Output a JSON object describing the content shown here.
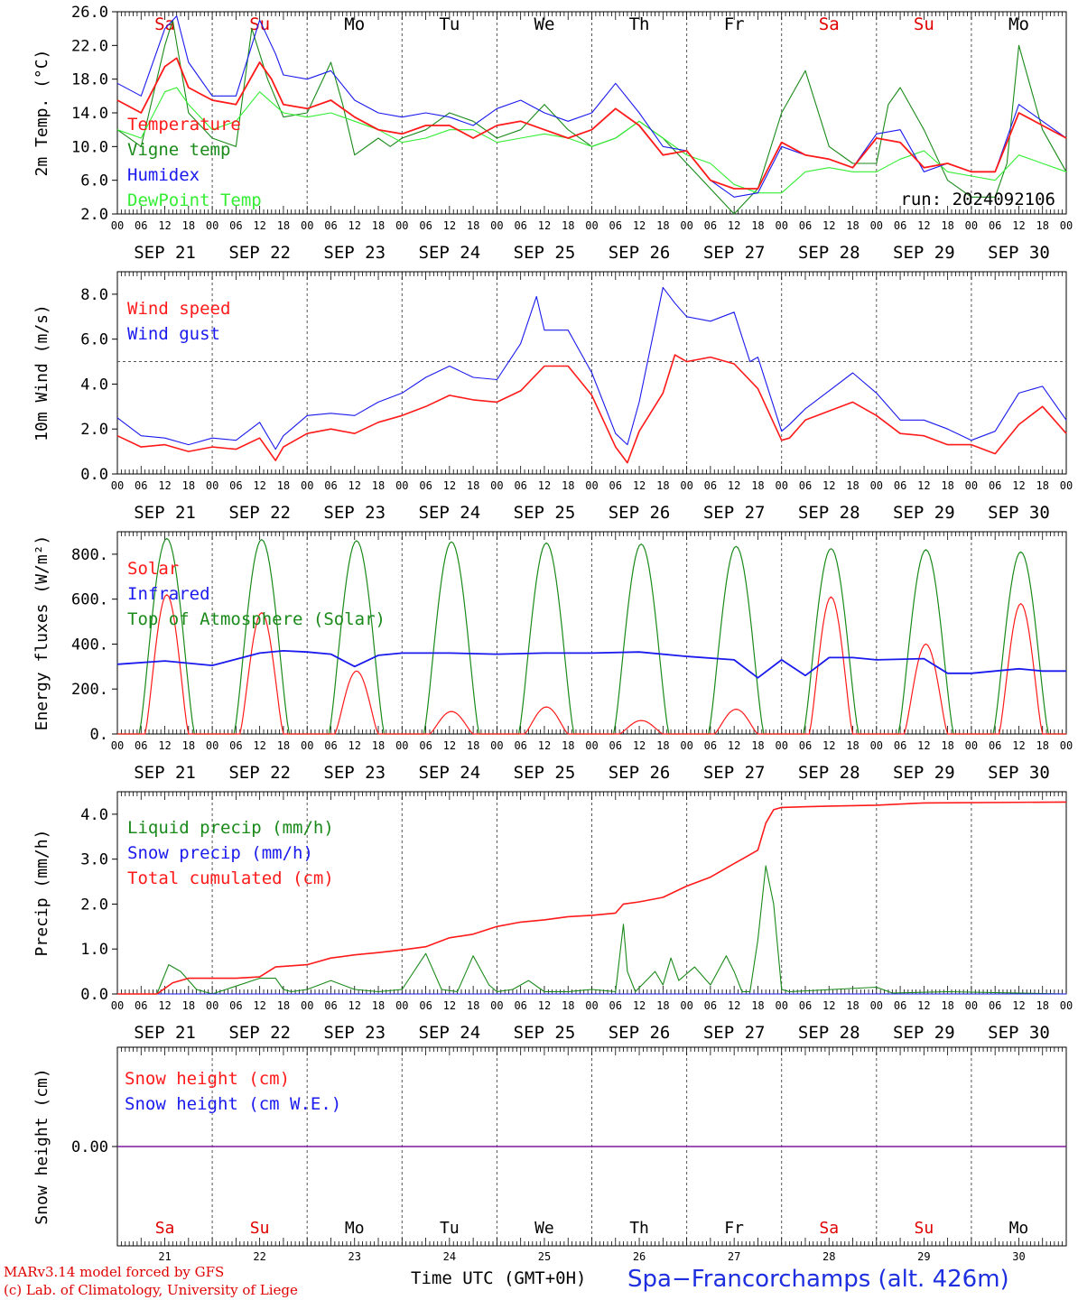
{
  "days": [
    {
      "weekday": "Sa",
      "date": "SEP 21",
      "num": "21",
      "weekend": true
    },
    {
      "weekday": "Su",
      "date": "SEP 22",
      "num": "22",
      "weekend": true
    },
    {
      "weekday": "Mo",
      "date": "SEP 23",
      "num": "23",
      "weekend": false
    },
    {
      "weekday": "Tu",
      "date": "SEP 24",
      "num": "24",
      "weekend": false
    },
    {
      "weekday": "We",
      "date": "SEP 25",
      "num": "25",
      "weekend": false
    },
    {
      "weekday": "Th",
      "date": "SEP 26",
      "num": "26",
      "weekend": false
    },
    {
      "weekday": "Fr",
      "date": "SEP 27",
      "num": "27",
      "weekend": false
    },
    {
      "weekday": "Sa",
      "date": "SEP 28",
      "num": "28",
      "weekend": true
    },
    {
      "weekday": "Su",
      "date": "SEP 29",
      "num": "29",
      "weekend": true
    },
    {
      "weekday": "Mo",
      "date": "SEP 30",
      "num": "30",
      "weekend": false
    }
  ],
  "hour_labels": [
    "00",
    "06",
    "12",
    "18"
  ],
  "colors": {
    "weekend": "#e00000",
    "weekday": "#000000",
    "red": "#ff1a1a",
    "green": "#1a8a1a",
    "blue": "#1a1aee",
    "light_green": "#33ee33",
    "purple": "#7a1a9a"
  },
  "footer": {
    "line1": "MARv3.14 model forced by GFS",
    "line2": "(c) Lab. of Climatology, University of Liege",
    "axis_label": "Time UTC (GMT+0H)",
    "station": "Spa−Francorchamps (alt. 426m)"
  },
  "chart_data": [
    {
      "type": "line",
      "ylabel": "2m Temp. (°C)",
      "ylim": [
        2.0,
        26.0
      ],
      "yticks": [
        "2.0",
        "6.0",
        "10.0",
        "14.0",
        "18.0",
        "22.0",
        "26.0"
      ],
      "annotation": "run: 2024092106",
      "legend": "top-left",
      "x_unit": "hours since SEP 21 00 UTC",
      "series": [
        {
          "name": "Temperature",
          "color": "red",
          "x": [
            0,
            6,
            12,
            15,
            18,
            24,
            30,
            36,
            39,
            42,
            48,
            54,
            60,
            66,
            72,
            78,
            84,
            90,
            96,
            102,
            108,
            114,
            120,
            126,
            132,
            138,
            144,
            150,
            156,
            162,
            168,
            174,
            180,
            186,
            192,
            198,
            204,
            210,
            216,
            222,
            228,
            234,
            240
          ],
          "y": [
            15.5,
            14,
            19.5,
            20.5,
            17,
            15.5,
            15,
            20,
            18,
            15,
            14.5,
            15.5,
            13.5,
            12,
            11.5,
            12.5,
            12.5,
            11,
            12.5,
            13,
            12,
            11,
            12,
            14.5,
            12.5,
            9,
            9.5,
            6,
            5,
            5,
            10.5,
            9,
            8.5,
            7.5,
            11,
            10.5,
            7.5,
            8,
            7,
            7,
            14,
            12.5,
            11
          ]
        },
        {
          "name": "Vigne temp",
          "color": "green",
          "x": [
            0,
            6,
            12,
            14,
            18,
            24,
            30,
            34,
            38,
            42,
            48,
            54,
            57,
            60,
            66,
            69,
            72,
            78,
            84,
            90,
            96,
            102,
            108,
            114,
            120,
            126,
            132,
            138,
            144,
            150,
            156,
            162,
            168,
            174,
            180,
            186,
            192,
            195,
            198,
            204,
            210,
            216,
            222,
            225,
            228,
            234,
            240
          ],
          "y": [
            12,
            10,
            22,
            25,
            14,
            11,
            10,
            24,
            18,
            13.5,
            14,
            20,
            15,
            9,
            11,
            10,
            11,
            12,
            14,
            13,
            11,
            12,
            15,
            12,
            10,
            11,
            13,
            11,
            8,
            5,
            2,
            5,
            14,
            19,
            10,
            8,
            8,
            15,
            17,
            12,
            6,
            4,
            4,
            8,
            22,
            12,
            7
          ]
        },
        {
          "name": "Humidex",
          "color": "blue",
          "x": [
            0,
            6,
            12,
            15,
            18,
            24,
            30,
            36,
            40,
            42,
            48,
            54,
            60,
            66,
            72,
            78,
            84,
            90,
            96,
            102,
            108,
            114,
            120,
            126,
            132,
            138,
            144,
            150,
            156,
            162,
            168,
            174,
            180,
            186,
            192,
            198,
            204,
            210,
            216,
            222,
            228,
            234,
            240
          ],
          "y": [
            17.5,
            16,
            24,
            25.5,
            20,
            16,
            16,
            25,
            21,
            18.5,
            18,
            19,
            15.5,
            14,
            13.5,
            14,
            13.5,
            12.5,
            14.5,
            15.5,
            14,
            13,
            14,
            17.5,
            14,
            10,
            9.5,
            6,
            4,
            4.5,
            10,
            9,
            8.5,
            7.5,
            11.5,
            12,
            7,
            8,
            7,
            7,
            15,
            13,
            11
          ]
        },
        {
          "name": "DewPoint Temp",
          "color": "light_green",
          "x": [
            0,
            6,
            12,
            15,
            18,
            24,
            30,
            36,
            42,
            48,
            54,
            60,
            66,
            72,
            78,
            84,
            90,
            96,
            102,
            108,
            114,
            120,
            126,
            132,
            138,
            144,
            150,
            156,
            162,
            168,
            174,
            180,
            186,
            192,
            198,
            204,
            210,
            216,
            222,
            228,
            234,
            240
          ],
          "y": [
            12,
            11,
            16.5,
            17,
            15,
            12,
            13,
            16.5,
            14,
            13.5,
            14,
            13,
            12,
            10.5,
            11,
            12,
            12,
            10.5,
            11,
            11.5,
            11,
            10,
            11,
            13,
            11,
            9,
            8,
            5.5,
            4.5,
            4.5,
            7,
            7.5,
            7,
            7,
            8.5,
            9.5,
            7,
            6.5,
            6,
            9,
            8,
            7
          ]
        }
      ]
    },
    {
      "type": "line",
      "ylabel": "10m Wind (m/s)",
      "ylim": [
        0.0,
        9.0
      ],
      "yticks": [
        "0.0",
        "2.0",
        "4.0",
        "6.0",
        "8.0"
      ],
      "reference_line": 5.0,
      "legend": "top-left",
      "series": [
        {
          "name": "Wind speed",
          "color": "red",
          "x": [
            0,
            6,
            12,
            18,
            24,
            30,
            36,
            40,
            42,
            48,
            54,
            60,
            66,
            72,
            78,
            84,
            90,
            96,
            102,
            108,
            114,
            120,
            126,
            129,
            132,
            138,
            141,
            144,
            150,
            156,
            162,
            168,
            170,
            174,
            180,
            186,
            192,
            198,
            204,
            210,
            216,
            222,
            228,
            234,
            240
          ],
          "y": [
            1.7,
            1.2,
            1.3,
            1.0,
            1.2,
            1.1,
            1.6,
            0.6,
            1.2,
            1.8,
            2.0,
            1.8,
            2.3,
            2.6,
            3.0,
            3.5,
            3.3,
            3.2,
            3.7,
            4.8,
            4.8,
            3.5,
            1.2,
            0.5,
            1.9,
            3.6,
            5.3,
            5.0,
            5.2,
            4.9,
            3.8,
            1.5,
            1.6,
            2.4,
            2.8,
            3.2,
            2.6,
            1.8,
            1.7,
            1.3,
            1.3,
            0.9,
            2.2,
            3.0,
            1.8
          ]
        },
        {
          "name": "Wind gust",
          "color": "blue",
          "x": [
            0,
            6,
            12,
            18,
            24,
            30,
            36,
            40,
            42,
            48,
            54,
            60,
            66,
            72,
            78,
            84,
            90,
            96,
            102,
            106,
            108,
            114,
            120,
            126,
            129,
            132,
            138,
            141,
            144,
            150,
            156,
            160,
            162,
            168,
            170,
            174,
            180,
            186,
            192,
            198,
            204,
            210,
            216,
            222,
            228,
            234,
            240
          ],
          "y": [
            2.5,
            1.7,
            1.6,
            1.3,
            1.6,
            1.5,
            2.3,
            1.1,
            1.7,
            2.6,
            2.7,
            2.6,
            3.2,
            3.6,
            4.3,
            4.8,
            4.3,
            4.2,
            5.8,
            7.9,
            6.4,
            6.4,
            4.5,
            1.8,
            1.3,
            3.2,
            8.3,
            7.6,
            7.0,
            6.8,
            7.2,
            5.0,
            5.2,
            1.9,
            2.2,
            2.9,
            3.7,
            4.5,
            3.6,
            2.4,
            2.4,
            2.0,
            1.5,
            1.9,
            3.6,
            3.9,
            2.4
          ]
        }
      ]
    },
    {
      "type": "line",
      "ylabel": "Energy fluxes (W/m²)",
      "ylim": [
        0,
        900
      ],
      "yticks": [
        "0.",
        "200.",
        "400.",
        "600.",
        "800."
      ],
      "legend": "top-left",
      "series": [
        {
          "name": "Solar",
          "color": "red",
          "daily_peaks": [
            620,
            540,
            280,
            100,
            120,
            60,
            110,
            610,
            400,
            580
          ]
        },
        {
          "name": "Infrared",
          "color": "blue",
          "x": [
            0,
            12,
            24,
            36,
            42,
            48,
            54,
            60,
            66,
            72,
            84,
            96,
            108,
            120,
            132,
            144,
            156,
            162,
            168,
            174,
            180,
            186,
            192,
            204,
            210,
            216,
            228,
            234,
            240
          ],
          "y": [
            310,
            325,
            305,
            360,
            370,
            365,
            355,
            300,
            350,
            360,
            360,
            355,
            360,
            360,
            365,
            345,
            330,
            250,
            330,
            260,
            340,
            340,
            330,
            335,
            270,
            270,
            290,
            280,
            280
          ]
        },
        {
          "name": "Top of Atmosphere (Solar)",
          "color": "green",
          "daily_peaks": [
            870,
            865,
            860,
            855,
            850,
            845,
            835,
            825,
            820,
            810
          ]
        }
      ]
    },
    {
      "type": "line",
      "ylabel": "Precip (mm/h)",
      "ylim": [
        0.0,
        4.5
      ],
      "yticks": [
        "0.0",
        "1.0",
        "2.0",
        "3.0",
        "4.0"
      ],
      "legend": "top-left",
      "series": [
        {
          "name": "Liquid precip (mm/h)",
          "color": "green",
          "x": [
            0,
            10,
            13,
            16,
            20,
            24,
            36,
            40,
            42,
            44,
            48,
            54,
            60,
            66,
            72,
            78,
            82,
            86,
            90,
            94,
            96,
            100,
            104,
            108,
            114,
            120,
            126,
            128,
            129,
            131,
            136,
            138,
            140,
            142,
            146,
            150,
            154,
            156,
            158,
            160,
            162,
            164,
            166,
            168,
            170,
            192,
            196,
            210,
            240
          ],
          "y": [
            0,
            0,
            0.65,
            0.5,
            0.1,
            0,
            0.35,
            0.35,
            0.1,
            0.05,
            0.1,
            0.3,
            0.1,
            0.05,
            0.1,
            0.9,
            0.1,
            0.05,
            0.85,
            0.2,
            0.05,
            0.1,
            0.3,
            0.05,
            0.05,
            0.1,
            0.05,
            1.55,
            0.5,
            0.05,
            0.5,
            0.2,
            0.8,
            0.3,
            0.6,
            0.2,
            0.85,
            0.5,
            0.05,
            0.05,
            1.2,
            2.85,
            2.0,
            0.1,
            0.05,
            0.15,
            0.02,
            0.05,
            0
          ]
        },
        {
          "name": "Snow precip (mm/h)",
          "color": "blue",
          "x": [
            0,
            240
          ],
          "y": [
            0,
            0
          ]
        },
        {
          "name": "Total cumulated (cm)",
          "color": "red",
          "x": [
            0,
            10,
            14,
            18,
            24,
            30,
            36,
            40,
            48,
            54,
            60,
            66,
            72,
            78,
            84,
            90,
            96,
            102,
            108,
            114,
            120,
            126,
            128,
            132,
            138,
            144,
            150,
            156,
            158,
            162,
            164,
            166,
            168,
            180,
            192,
            204,
            240
          ],
          "y": [
            0,
            0,
            0.25,
            0.35,
            0.35,
            0.35,
            0.38,
            0.6,
            0.65,
            0.8,
            0.87,
            0.92,
            0.98,
            1.05,
            1.25,
            1.33,
            1.5,
            1.6,
            1.65,
            1.72,
            1.75,
            1.8,
            2.0,
            2.05,
            2.15,
            2.4,
            2.6,
            2.9,
            3.0,
            3.2,
            3.8,
            4.1,
            4.15,
            4.18,
            4.2,
            4.25,
            4.27
          ]
        }
      ]
    },
    {
      "type": "line",
      "ylabel": "Snow height (cm)",
      "ylim": [
        -1,
        1
      ],
      "yticks": [
        "0.00"
      ],
      "legend": "top-left",
      "series": [
        {
          "name": "Snow height (cm)",
          "color": "red",
          "x": [
            0,
            240
          ],
          "y": [
            0,
            0
          ]
        },
        {
          "name": "Snow height (cm W.E.)",
          "color": "blue",
          "x": [
            0,
            240
          ],
          "y": [
            0,
            0
          ]
        }
      ]
    }
  ]
}
